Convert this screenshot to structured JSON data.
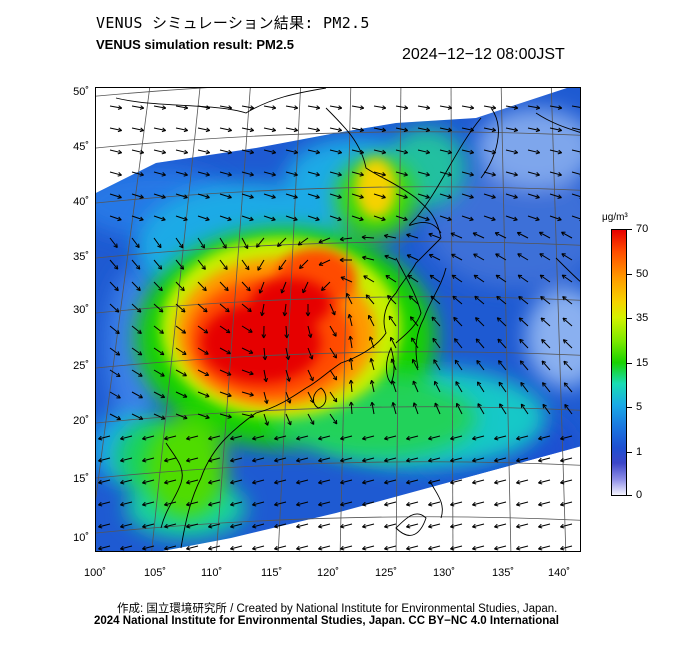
{
  "title_jp": "VENUS シミュレーション結果: PM2.5",
  "title_en": "VENUS simulation result: PM2.5",
  "timestamp": "2024−12−12 08:00JST",
  "map": {
    "lat_labels": [
      "50˚",
      "45˚",
      "40˚",
      "35˚",
      "30˚",
      "25˚",
      "20˚",
      "15˚",
      "10˚"
    ],
    "lon_labels": [
      "100˚",
      "105˚",
      "110˚",
      "115˚",
      "120˚",
      "125˚",
      "130˚",
      "135˚",
      "140˚"
    ]
  },
  "colorbar": {
    "unit": "μg/m³",
    "labels": [
      "70",
      "50",
      "35",
      "15",
      "5",
      "1",
      "0"
    ],
    "colors": [
      "#e60000",
      "#ff9a00",
      "#f6d200",
      "#19d200",
      "#1aaae6",
      "#1e50d2",
      "#f5f5ff"
    ]
  },
  "footer": {
    "credit": "作成: 国立環境研究所 / Created by National Institute for Environmental Studies, Japan.",
    "license": "2024 National Institute for Environmental Studies, Japan. CC BY−NC 4.0 International"
  }
}
